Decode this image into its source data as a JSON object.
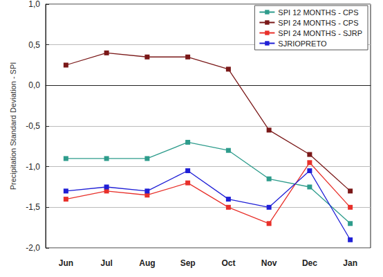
{
  "chart_data": {
    "type": "line",
    "y_label": "Precipitation Standard Deviation - SPI",
    "categories": [
      "Jun",
      "Jul",
      "Aug",
      "Sep",
      "Oct",
      "Nov",
      "Dec",
      "Jan"
    ],
    "series": [
      {
        "name": "SPI 12 MONTHS - CPS",
        "color": "#2e9c8c",
        "values": [
          -0.9,
          -0.9,
          -0.9,
          -0.7,
          -0.8,
          -1.15,
          -1.25,
          -1.7
        ]
      },
      {
        "name": "SPI 24 MONTHS - CPS",
        "color": "#7a1818",
        "values": [
          0.25,
          0.4,
          0.35,
          0.35,
          0.2,
          -0.55,
          -0.85,
          -1.3
        ]
      },
      {
        "name": "SPI 24 MONTHS - SJRP",
        "color": "#e8302a",
        "values": [
          -1.4,
          -1.3,
          -1.35,
          -1.2,
          -1.5,
          -1.7,
          -0.95,
          -1.5
        ]
      },
      {
        "name": "SJRIOPRETO",
        "color": "#1f1fd6",
        "values": [
          -1.3,
          -1.25,
          -1.3,
          -1.05,
          -1.4,
          -1.5,
          -1.05,
          -1.9
        ]
      }
    ],
    "ylim": [
      -2.0,
      1.0
    ],
    "yticks": [
      {
        "value": -2.0,
        "label": "-2,0"
      },
      {
        "value": -1.5,
        "label": "-1,5"
      },
      {
        "value": -1.0,
        "label": "-1,0"
      },
      {
        "value": -0.5,
        "label": "-0,5"
      },
      {
        "value": 0.0,
        "label": "0,0"
      },
      {
        "value": 0.5,
        "label": "0,5"
      },
      {
        "value": 1.0,
        "label": "1,0"
      }
    ],
    "grid": true,
    "legend": "upper right",
    "marker": "square",
    "line_style": "solid"
  }
}
